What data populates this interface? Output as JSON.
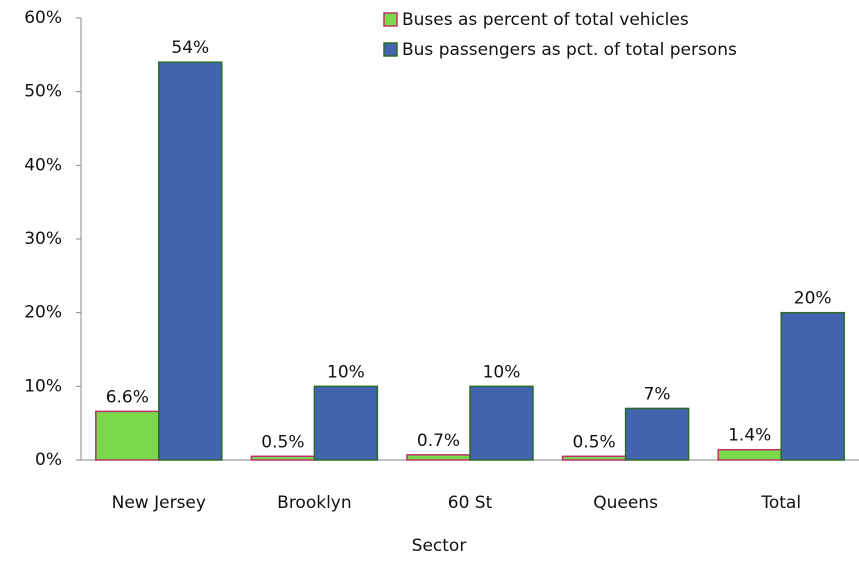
{
  "chart_data": {
    "type": "bar",
    "x_label": "Sector",
    "categories": [
      "New Jersey",
      "Brooklyn",
      "60 St",
      "Queens",
      "Total"
    ],
    "series": [
      {
        "name": "Buses as percent of total vehicles",
        "color": "#7ad84a",
        "edge": "#c0306a",
        "values": [
          6.6,
          0.5,
          0.7,
          0.5,
          1.4
        ],
        "value_labels": [
          "6.6%",
          "0.5%",
          "0.7%",
          "0.5%",
          "1.4%"
        ]
      },
      {
        "name": "Bus passengers as pct. of total persons",
        "color": "#4263ae",
        "edge": "#2b6a2b",
        "values": [
          54,
          10,
          10,
          7,
          20
        ],
        "value_labels": [
          "54%",
          "10%",
          "10%",
          "7%",
          "20%"
        ]
      }
    ],
    "ylim": [
      0,
      60
    ],
    "yticks": [
      {
        "value": 0,
        "label": "0%"
      },
      {
        "value": 10,
        "label": "10%"
      },
      {
        "value": 20,
        "label": "20%"
      },
      {
        "value": 30,
        "label": "30%"
      },
      {
        "value": 40,
        "label": "40%"
      },
      {
        "value": 50,
        "label": "50%"
      },
      {
        "value": 60,
        "label": "60%"
      }
    ],
    "grid": false,
    "legend": "top-right"
  }
}
